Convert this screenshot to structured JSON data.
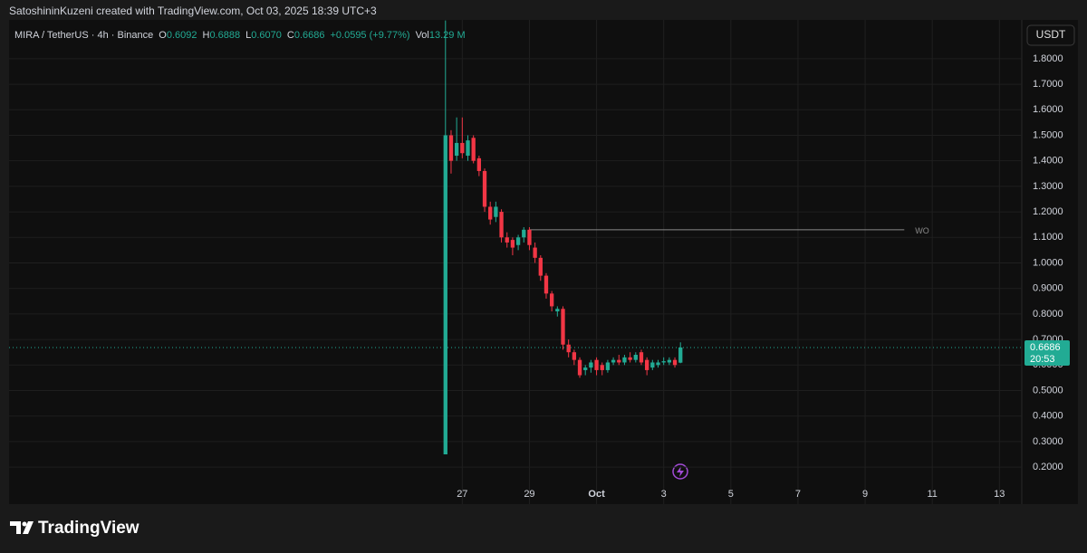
{
  "header": {
    "credit": "SatoshininKuzeni created with TradingView.com, Oct 03, 2025 18:39 UTC+3",
    "symbol": "MIRA / TetherUS · 4h · Binance",
    "items": [
      {
        "key": "O",
        "value": "0.6092"
      },
      {
        "key": "H",
        "value": "0.6888"
      },
      {
        "key": "L",
        "value": "0.6070"
      },
      {
        "key": "C",
        "value": "0.6686"
      }
    ],
    "change": "+0.0595 (+9.77%)",
    "vol_key": "Vol",
    "vol": "13.29 M",
    "currency": "USDT",
    "brand": "TradingView"
  },
  "chart_data": {
    "type": "candlestick",
    "x": [
      0,
      1,
      2,
      3,
      4,
      5,
      6,
      7,
      8,
      9,
      10,
      11,
      12,
      13,
      14,
      15,
      16,
      17,
      18,
      19,
      20,
      21,
      22,
      23,
      24,
      25,
      26,
      27,
      28,
      29,
      30,
      31,
      32,
      33,
      34,
      35,
      36,
      37,
      38,
      39,
      40,
      41,
      42
    ],
    "open": [
      0.25,
      1.5,
      1.42,
      1.47,
      1.42,
      1.49,
      1.41,
      1.36,
      1.22,
      1.18,
      1.2,
      1.1,
      1.09,
      1.07,
      1.1,
      1.13,
      1.06,
      1.02,
      0.95,
      0.88,
      0.81,
      0.82,
      0.68,
      0.65,
      0.62,
      0.58,
      0.59,
      0.62,
      0.6,
      0.58,
      0.61,
      0.62,
      0.61,
      0.63,
      0.62,
      0.65,
      0.62,
      0.59,
      0.6,
      0.61,
      0.61,
      0.62,
      0.6092
    ],
    "high": [
      1.95,
      1.52,
      1.57,
      1.57,
      1.5,
      1.5,
      1.42,
      1.37,
      1.24,
      1.24,
      1.21,
      1.12,
      1.1,
      1.11,
      1.14,
      1.14,
      1.08,
      1.03,
      0.96,
      0.89,
      0.83,
      0.83,
      0.7,
      0.66,
      0.63,
      0.6,
      0.62,
      0.63,
      0.61,
      0.62,
      0.63,
      0.64,
      0.64,
      0.65,
      0.65,
      0.66,
      0.63,
      0.62,
      0.62,
      0.63,
      0.63,
      0.63,
      0.6888
    ],
    "low": [
      0.25,
      1.35,
      1.4,
      1.41,
      1.4,
      1.39,
      1.34,
      1.2,
      1.15,
      1.16,
      1.08,
      1.06,
      1.03,
      1.05,
      1.08,
      1.05,
      1.0,
      0.93,
      0.86,
      0.81,
      0.79,
      0.66,
      0.63,
      0.6,
      0.55,
      0.56,
      0.57,
      0.56,
      0.56,
      0.57,
      0.6,
      0.6,
      0.6,
      0.61,
      0.61,
      0.6,
      0.56,
      0.58,
      0.59,
      0.6,
      0.6,
      0.59,
      0.607
    ],
    "close": [
      1.5,
      1.4,
      1.47,
      1.43,
      1.48,
      1.4,
      1.36,
      1.22,
      1.17,
      1.22,
      1.1,
      1.08,
      1.06,
      1.1,
      1.13,
      1.07,
      1.02,
      0.95,
      0.88,
      0.83,
      0.82,
      0.68,
      0.65,
      0.62,
      0.56,
      0.59,
      0.61,
      0.58,
      0.58,
      0.61,
      0.62,
      0.61,
      0.63,
      0.62,
      0.64,
      0.61,
      0.58,
      0.61,
      0.61,
      0.615,
      0.62,
      0.6,
      0.6686
    ],
    "up_color": "#22ab94",
    "down_color": "#f23645",
    "xlim": [
      -78,
      103
    ],
    "xticks": [
      {
        "value": 3,
        "label": "27"
      },
      {
        "value": 15,
        "label": "29"
      },
      {
        "value": 27,
        "label": "Oct"
      },
      {
        "value": 39,
        "label": "3"
      },
      {
        "value": 51,
        "label": "5"
      },
      {
        "value": 63,
        "label": "7"
      },
      {
        "value": 75,
        "label": "9"
      },
      {
        "value": 87,
        "label": "11"
      },
      {
        "value": 99,
        "label": "13"
      }
    ],
    "ylim": [
      0.055,
      1.952
    ],
    "yticks": [
      {
        "value": 0.2,
        "label": "0.2000"
      },
      {
        "value": 0.3,
        "label": "0.3000"
      },
      {
        "value": 0.4,
        "label": "0.4000"
      },
      {
        "value": 0.5,
        "label": "0.5000"
      },
      {
        "value": 0.6,
        "label": "0.6000"
      },
      {
        "value": 0.7,
        "label": "0.7000"
      },
      {
        "value": 0.8,
        "label": "0.8000"
      },
      {
        "value": 0.9,
        "label": "0.9000"
      },
      {
        "value": 1.0,
        "label": "1.0000"
      },
      {
        "value": 1.1,
        "label": "1.1000"
      },
      {
        "value": 1.2,
        "label": "1.2000"
      },
      {
        "value": 1.3,
        "label": "1.3000"
      },
      {
        "value": 1.4,
        "label": "1.4000"
      },
      {
        "value": 1.5,
        "label": "1.5000"
      },
      {
        "value": 1.6,
        "label": "1.6000"
      },
      {
        "value": 1.7,
        "label": "1.7000"
      },
      {
        "value": 1.8,
        "label": "1.8000"
      }
    ],
    "grid": true,
    "last_price": 0.6686,
    "countdown": "20:53",
    "annotations": [
      {
        "label": "WO",
        "value": 1.13,
        "from": 15,
        "to": 82
      }
    ]
  }
}
